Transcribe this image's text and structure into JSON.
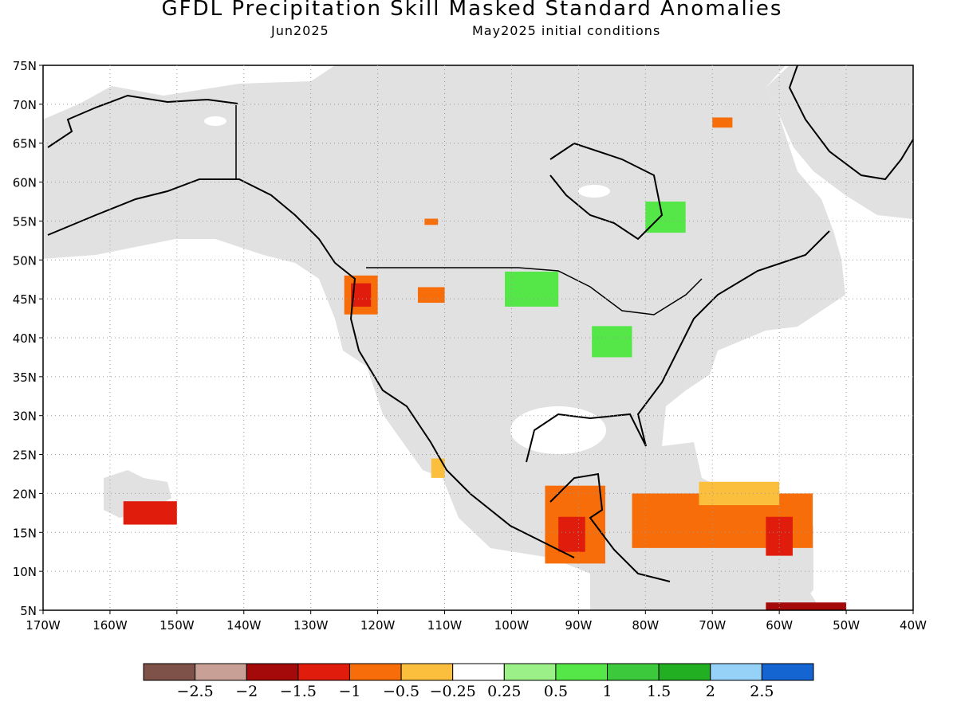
{
  "header": {
    "title": "GFDL Precipitation Skill Masked Standard Anomalies",
    "target_month": "Jun2025",
    "initial_conditions": "May2025 initial conditions"
  },
  "map": {
    "lon_range": [
      -170,
      -40
    ],
    "lat_range": [
      5,
      75
    ],
    "lat_ticks": [
      {
        "value": 75,
        "label": "75N"
      },
      {
        "value": 70,
        "label": "70N"
      },
      {
        "value": 65,
        "label": "65N"
      },
      {
        "value": 60,
        "label": "60N"
      },
      {
        "value": 55,
        "label": "55N"
      },
      {
        "value": 50,
        "label": "50N"
      },
      {
        "value": 45,
        "label": "45N"
      },
      {
        "value": 40,
        "label": "40N"
      },
      {
        "value": 35,
        "label": "35N"
      },
      {
        "value": 30,
        "label": "30N"
      },
      {
        "value": 25,
        "label": "25N"
      },
      {
        "value": 20,
        "label": "20N"
      },
      {
        "value": 15,
        "label": "15N"
      },
      {
        "value": 10,
        "label": "10N"
      },
      {
        "value": 5,
        "label": "5N"
      }
    ],
    "lon_ticks": [
      {
        "value": -170,
        "label": "170W"
      },
      {
        "value": -160,
        "label": "160W"
      },
      {
        "value": -150,
        "label": "150W"
      },
      {
        "value": -140,
        "label": "140W"
      },
      {
        "value": -130,
        "label": "130W"
      },
      {
        "value": -120,
        "label": "120W"
      },
      {
        "value": -110,
        "label": "110W"
      },
      {
        "value": -100,
        "label": "100W"
      },
      {
        "value": -90,
        "label": "90W"
      },
      {
        "value": -80,
        "label": "80W"
      },
      {
        "value": -70,
        "label": "70W"
      },
      {
        "value": -60,
        "label": "60W"
      },
      {
        "value": -50,
        "label": "50W"
      },
      {
        "value": -40,
        "label": "40W"
      }
    ],
    "colors": {
      "land": "#e1e1e1",
      "neg_2_5": "#7f5249",
      "neg_2": "#c9a095",
      "neg_1_5": "#a50a0a",
      "neg_1": "#e01c0c",
      "neg_0_5": "#f66d0a",
      "neg_0_25": "#fbbf3d",
      "neutral": "#ffffff",
      "pos_0_25": "#9bf088",
      "pos_0_5": "#55e748",
      "pos_1": "#3cca3c",
      "pos_1_5": "#22b022",
      "pos_2": "#96d1f8",
      "pos_2_5": "#1464d2"
    },
    "anomaly_regions": [
      {
        "name": "pacific-northwest",
        "color": "neg_0_5",
        "lon": [
          -125,
          -120
        ],
        "lat": [
          43,
          48
        ]
      },
      {
        "name": "pacific-northwest-core",
        "color": "neg_1",
        "lon": [
          -124,
          -121
        ],
        "lat": [
          44,
          47
        ]
      },
      {
        "name": "northern-rockies",
        "color": "neg_0_5",
        "lon": [
          -114,
          -110
        ],
        "lat": [
          44.5,
          46.5
        ]
      },
      {
        "name": "southern-alberta",
        "color": "neg_0_5",
        "lon": [
          -113,
          -111
        ],
        "lat": [
          54.5,
          55.3
        ]
      },
      {
        "name": "north-dakota",
        "color": "pos_0_5",
        "lon": [
          -101,
          -93
        ],
        "lat": [
          44,
          48.5
        ]
      },
      {
        "name": "ohio-valley",
        "color": "pos_0_5",
        "lon": [
          -88,
          -82
        ],
        "lat": [
          37.5,
          41.5
        ]
      },
      {
        "name": "quebec",
        "color": "pos_0_5",
        "lon": [
          -80,
          -74
        ],
        "lat": [
          53.5,
          57.5
        ]
      },
      {
        "name": "baffin-island",
        "color": "neg_0_5",
        "lon": [
          -70,
          -67
        ],
        "lat": [
          67,
          68.3
        ]
      },
      {
        "name": "hawaii",
        "color": "neg_1",
        "lon": [
          -158,
          -150
        ],
        "lat": [
          16,
          19
        ]
      },
      {
        "name": "baja-tip",
        "color": "neg_0_25",
        "lon": [
          -112,
          -110
        ],
        "lat": [
          22,
          24.5
        ]
      },
      {
        "name": "central-america",
        "color": "neg_0_5",
        "lon": [
          -95,
          -86
        ],
        "lat": [
          11,
          21
        ]
      },
      {
        "name": "central-america-core",
        "color": "neg_1",
        "lon": [
          -93,
          -89
        ],
        "lat": [
          12.5,
          17
        ]
      },
      {
        "name": "caribbean",
        "color": "neg_0_5",
        "lon": [
          -82,
          -55
        ],
        "lat": [
          13,
          20
        ]
      },
      {
        "name": "caribbean-fringe",
        "color": "neg_0_25",
        "lon": [
          -72,
          -60
        ],
        "lat": [
          18.5,
          21.5
        ]
      },
      {
        "name": "lesser-antilles",
        "color": "neg_1",
        "lon": [
          -62,
          -58
        ],
        "lat": [
          12,
          17
        ]
      },
      {
        "name": "south-america-coast",
        "color": "neg_1_5",
        "lon": [
          -62,
          -50
        ],
        "lat": [
          5,
          6
        ]
      }
    ]
  },
  "legend": {
    "labels": [
      "-2.5",
      "-2",
      "-1.5",
      "-1",
      "-0.5",
      "-0.25",
      "0.25",
      "0.5",
      "1",
      "1.5",
      "2",
      "2.5"
    ],
    "swatches": [
      "neg_2_5",
      "neg_2",
      "neg_1_5",
      "neg_1",
      "neg_0_5",
      "neg_0_25",
      "neutral",
      "pos_0_25",
      "pos_0_5",
      "pos_1",
      "pos_1_5",
      "pos_2",
      "pos_2_5"
    ]
  }
}
